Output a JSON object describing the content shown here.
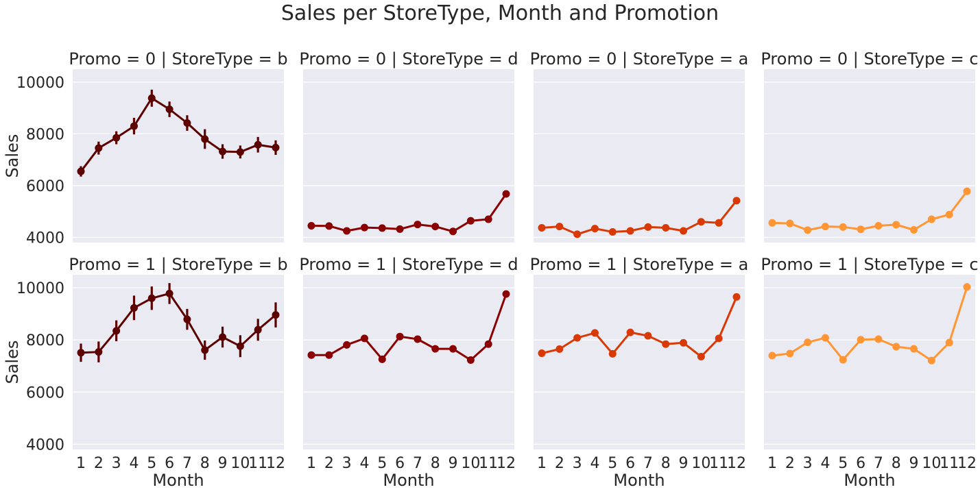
{
  "chart_data": {
    "type": "line",
    "title": "Sales per StoreType, Month and Promotion",
    "xlabel": "Month",
    "ylabel": "Sales",
    "x": [
      1,
      2,
      3,
      4,
      5,
      6,
      7,
      8,
      9,
      10,
      11,
      12
    ],
    "x_tick_labels": [
      "1",
      "2",
      "3",
      "4",
      "5",
      "6",
      "7",
      "8",
      "9",
      "10",
      "11",
      "12"
    ],
    "y_ticks": [
      4000,
      6000,
      8000,
      10000
    ],
    "y_tick_labels": [
      "4000",
      "6000",
      "8000",
      "10000"
    ],
    "ylim": [
      3800,
      10500
    ],
    "grid": true,
    "background": "#eaeaf2",
    "panels": [
      {
        "title": "Promo = 0 | StoreType = b",
        "color": "#5c0000",
        "values": [
          6550,
          7450,
          7850,
          8300,
          9380,
          8950,
          8420,
          7800,
          7320,
          7300,
          7580,
          7470
        ],
        "err": [
          200,
          250,
          250,
          320,
          330,
          300,
          300,
          380,
          280,
          250,
          300,
          280
        ]
      },
      {
        "title": "Promo = 0 | StoreType = d",
        "color": "#8b0000",
        "values": [
          4450,
          4440,
          4250,
          4380,
          4360,
          4320,
          4500,
          4420,
          4230,
          4640,
          4700,
          5680
        ],
        "err": [
          40,
          40,
          40,
          40,
          40,
          40,
          40,
          40,
          40,
          40,
          40,
          60
        ]
      },
      {
        "title": "Promo = 0 | StoreType = a",
        "color": "#d93a05",
        "values": [
          4370,
          4420,
          4120,
          4340,
          4210,
          4250,
          4400,
          4370,
          4250,
          4600,
          4560,
          5420
        ],
        "err": [
          30,
          30,
          30,
          30,
          30,
          30,
          30,
          30,
          30,
          30,
          30,
          40
        ]
      },
      {
        "title": "Promo = 0 | StoreType = c",
        "color": "#ff9633",
        "values": [
          4560,
          4540,
          4280,
          4420,
          4400,
          4310,
          4450,
          4490,
          4290,
          4700,
          4880,
          5780
        ],
        "err": [
          60,
          60,
          60,
          60,
          60,
          60,
          60,
          60,
          60,
          60,
          60,
          130
        ]
      },
      {
        "title": "Promo = 1 | StoreType = b",
        "color": "#5c0000",
        "values": [
          7510,
          7540,
          8350,
          9230,
          9600,
          9780,
          8790,
          7610,
          8110,
          7760,
          8390,
          8960
        ],
        "err": [
          350,
          400,
          400,
          470,
          450,
          400,
          400,
          370,
          400,
          420,
          420,
          480
        ]
      },
      {
        "title": "Promo = 1 | StoreType = d",
        "color": "#8b0000",
        "values": [
          7420,
          7420,
          7810,
          8060,
          7260,
          8130,
          8030,
          7660,
          7660,
          7230,
          7840,
          9760
        ],
        "err": [
          50,
          50,
          50,
          50,
          50,
          50,
          50,
          50,
          50,
          50,
          50,
          80
        ]
      },
      {
        "title": "Promo = 1 | StoreType = a",
        "color": "#d93a05",
        "values": [
          7490,
          7650,
          8080,
          8270,
          7470,
          8290,
          8160,
          7840,
          7890,
          7360,
          8060,
          9650
        ],
        "err": [
          40,
          40,
          40,
          40,
          40,
          40,
          40,
          40,
          40,
          40,
          40,
          60
        ]
      },
      {
        "title": "Promo = 1 | StoreType = c",
        "color": "#ff9633",
        "values": [
          7400,
          7480,
          7910,
          8080,
          7240,
          8010,
          8030,
          7740,
          7660,
          7210,
          7900,
          10030
        ],
        "err": [
          60,
          60,
          60,
          60,
          60,
          60,
          60,
          60,
          60,
          60,
          60,
          150
        ]
      }
    ]
  }
}
